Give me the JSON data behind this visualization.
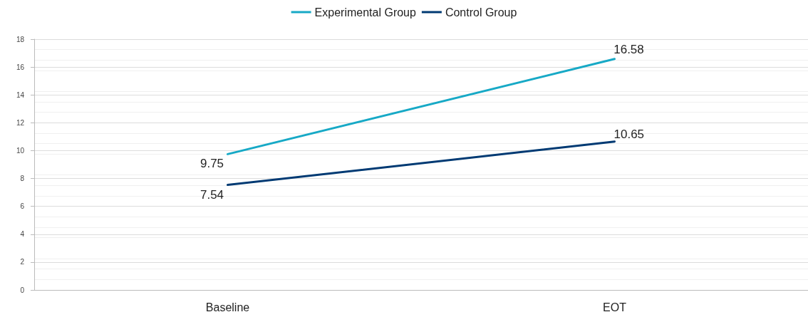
{
  "chart_data": {
    "type": "line",
    "categories": [
      "Baseline",
      "EOT"
    ],
    "series": [
      {
        "name": "Experimental Group",
        "color": "#17a9c6",
        "values": [
          9.75,
          16.58
        ]
      },
      {
        "name": "Control Group",
        "color": "#003a73",
        "values": [
          7.54,
          10.65
        ]
      }
    ],
    "ylim": [
      0,
      18
    ],
    "yticks": [
      0,
      2,
      4,
      6,
      8,
      10,
      12,
      14,
      16,
      18
    ],
    "grid": "y",
    "legend": "top",
    "data_labels": true,
    "marker": "none",
    "line_style": "solid"
  }
}
